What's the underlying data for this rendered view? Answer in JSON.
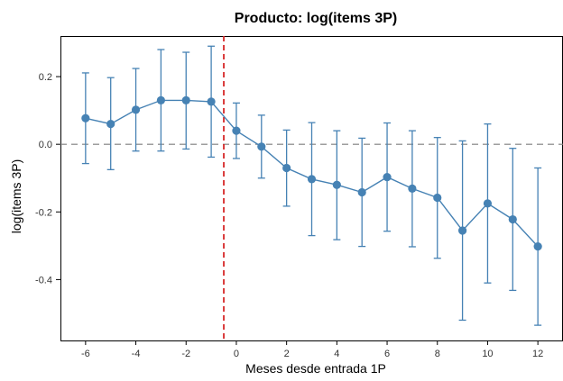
{
  "chart_data": {
    "type": "line",
    "title": "Producto: log(items 3P)",
    "xlabel": "Meses desde entrada 1P",
    "ylabel": "log(items 3P)",
    "xlim": [
      -7,
      13
    ],
    "ylim": [
      -0.58,
      0.32
    ],
    "xticks": [
      -6,
      -4,
      -2,
      0,
      2,
      4,
      6,
      8,
      10,
      12
    ],
    "xtick_labels": [
      "-6",
      "-4",
      "-2",
      "0",
      "2",
      "4",
      "6",
      "8",
      "10",
      "12"
    ],
    "yticks": [
      -0.4,
      -0.2,
      0.0,
      0.2
    ],
    "ytick_labels": [
      "-0.4",
      "-0.2",
      "0.0",
      "0.2"
    ],
    "reference_hline": 0.0,
    "reference_vline": -0.5,
    "grid": false,
    "series": [
      {
        "x": [
          -6,
          -5,
          -4,
          -3,
          -2,
          -1,
          0,
          1,
          2,
          3,
          4,
          5,
          6,
          7,
          8,
          9,
          10,
          11,
          12
        ],
        "y": [
          0.077,
          0.06,
          0.102,
          0.13,
          0.13,
          0.126,
          0.04,
          -0.007,
          -0.07,
          -0.103,
          -0.12,
          -0.142,
          -0.097,
          -0.131,
          -0.158,
          -0.255,
          -0.175,
          -0.222,
          -0.302
        ],
        "ci_lower": [
          -0.057,
          -0.075,
          -0.02,
          -0.02,
          -0.014,
          -0.038,
          -0.042,
          -0.1,
          -0.183,
          -0.27,
          -0.282,
          -0.302,
          -0.257,
          -0.303,
          -0.337,
          -0.52,
          -0.41,
          -0.432,
          -0.535
        ],
        "ci_upper": [
          0.211,
          0.197,
          0.224,
          0.28,
          0.272,
          0.29,
          0.122,
          0.086,
          0.042,
          0.064,
          0.04,
          0.018,
          0.063,
          0.04,
          0.02,
          0.01,
          0.06,
          -0.012,
          -0.07
        ]
      }
    ]
  },
  "colors": {
    "series": "#4682b4",
    "vline": "#d62728",
    "hline": "#7f7f7f",
    "axes": "#000000"
  }
}
